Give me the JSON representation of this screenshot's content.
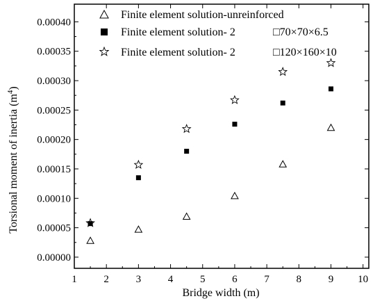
{
  "chart_data": {
    "type": "scatter",
    "xlabel": "Bridge width (m)",
    "ylabel": "Torsional moment of inertia (m",
    "ylabel_superscript": "4",
    "ylabel_suffix": ")",
    "xlim": [
      1,
      10
    ],
    "ylim": [
      -2e-05,
      0.0004
    ],
    "x_ticks": [
      "1",
      "2",
      "3",
      "4",
      "5",
      "6",
      "7",
      "8",
      "9",
      "10"
    ],
    "y_ticks": [
      "0.00000",
      "0.00005",
      "0.00010",
      "0.00015",
      "0.00020",
      "0.00025",
      "0.00030",
      "0.00035",
      "0.00040"
    ],
    "legend_position": "top",
    "series": [
      {
        "name": "Finite element solution-unreinforced",
        "marker": "open-triangle",
        "color": "#000000",
        "x": [
          1.5,
          3,
          4.5,
          6,
          7.5,
          9
        ],
        "y": [
          2.8e-05,
          4.7e-05,
          6.9e-05,
          0.000104,
          0.000158,
          0.00022
        ]
      },
      {
        "name": "Finite element solution- 2 □70×70×6.5",
        "marker": "filled-square",
        "color": "#000000",
        "x": [
          1.5,
          3,
          4.5,
          6,
          7.5,
          9
        ],
        "y": [
          5.7e-05,
          0.000135,
          0.00018,
          0.000226,
          0.000262,
          0.000286
        ]
      },
      {
        "name": "Finite element solution- 2□120×160×10",
        "marker": "open-star",
        "color": "#000000",
        "x": [
          1.5,
          3,
          4.5,
          6,
          7.5,
          9
        ],
        "y": [
          5.8e-05,
          0.000157,
          0.000218,
          0.000267,
          0.000315,
          0.00033
        ]
      }
    ]
  },
  "legend": [
    {
      "prefix": "Finite element solution-unreinforced",
      "suffix": ""
    },
    {
      "prefix": "Finite element solution-  2",
      "suffix": "□70×70×6.5"
    },
    {
      "prefix": "Finite element solution-  2",
      "suffix": "□120×160×10"
    }
  ]
}
